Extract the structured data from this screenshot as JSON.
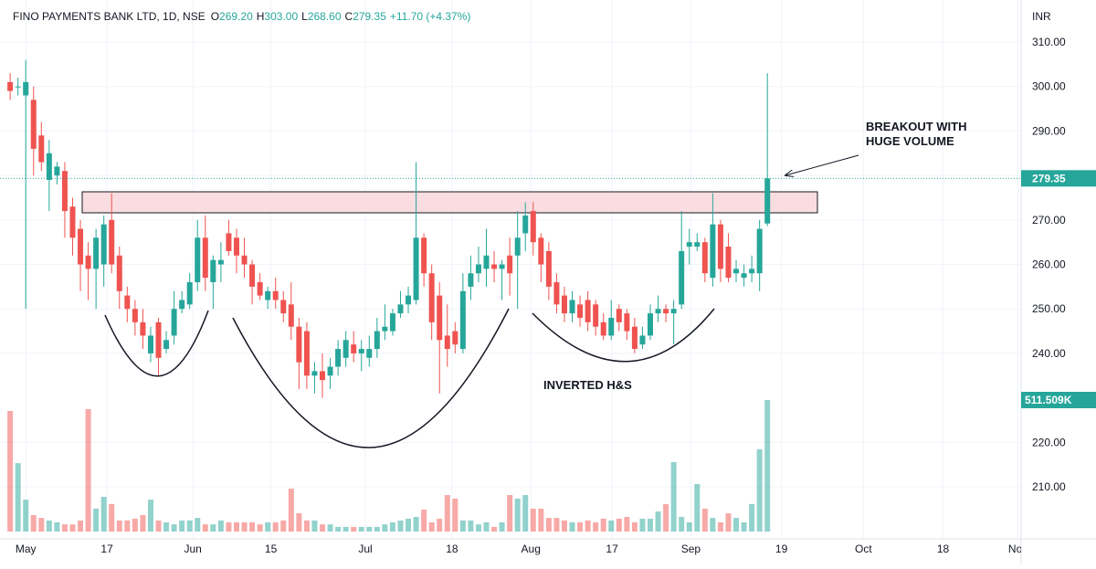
{
  "chart_data": {
    "type": "candlestick",
    "header": {
      "symbol": "FINO PAYMENTS BANK LTD, 1D, NSE",
      "o_label": "O",
      "o": "269.20",
      "h_label": "H",
      "h": "303.00",
      "l_label": "L",
      "l": "268.60",
      "c_label": "C",
      "c": "279.35",
      "change": "+11.70 (+4.37%)"
    },
    "currency": "INR",
    "open": [
      301,
      300,
      298,
      297,
      289,
      279,
      280,
      281,
      273,
      268,
      262,
      259,
      260,
      270,
      262,
      253,
      250,
      247,
      240,
      247,
      241,
      244,
      250,
      251,
      256,
      266,
      256,
      260,
      267,
      266,
      262,
      260,
      256,
      252,
      254,
      252,
      251,
      246,
      245,
      235,
      236,
      235,
      237,
      239,
      242,
      240,
      239,
      241,
      245,
      245,
      249,
      251,
      252,
      266,
      258,
      253,
      244,
      245,
      241,
      255,
      258,
      259,
      260,
      259,
      262,
      262,
      267,
      272,
      266,
      263,
      256,
      253,
      249,
      251,
      252,
      251,
      247,
      244,
      250,
      249,
      246,
      242,
      244,
      249,
      250,
      249,
      251,
      264,
      264,
      265,
      257,
      269,
      264,
      258,
      257,
      258,
      258,
      269.2
    ],
    "high": [
      303,
      302,
      306,
      300,
      292,
      288,
      283,
      283,
      275,
      270,
      265,
      268,
      271,
      276,
      264,
      255,
      252,
      250,
      246,
      248,
      245,
      254,
      254,
      258,
      270,
      271,
      262,
      265,
      270,
      268,
      266,
      261,
      258,
      255,
      257,
      254,
      256,
      248,
      247,
      238,
      240,
      239,
      243,
      245,
      245,
      243,
      244,
      248,
      251,
      250,
      254,
      255,
      283,
      267,
      260,
      256,
      251,
      247,
      258,
      262,
      264,
      268,
      263,
      261,
      266,
      272,
      274,
      274,
      267,
      265,
      258,
      255,
      254,
      253,
      254,
      252,
      249,
      252,
      251,
      250,
      248,
      246,
      251,
      253,
      251,
      252,
      272,
      268,
      267,
      266,
      276,
      270,
      267,
      261,
      260,
      262,
      270,
      303
    ],
    "low": [
      297,
      298,
      250,
      280,
      281,
      272,
      278,
      266,
      262,
      254,
      252,
      250,
      255,
      258,
      250,
      247,
      244,
      241,
      238,
      235,
      240,
      242,
      249,
      250,
      254,
      254,
      250,
      256,
      262,
      258,
      257,
      251,
      252,
      250,
      250,
      247,
      243,
      232,
      232,
      231,
      230,
      232,
      235,
      237,
      238,
      236,
      237,
      239,
      243,
      244,
      248,
      249,
      251,
      255,
      243,
      231,
      237,
      240,
      240,
      252,
      256,
      255,
      256,
      252,
      253,
      250,
      263,
      262,
      256,
      252,
      249,
      247,
      247,
      246,
      245,
      244,
      243,
      243,
      245,
      243,
      240,
      241,
      243,
      247,
      247,
      242,
      250,
      260,
      263,
      256,
      255,
      256,
      256,
      256,
      255,
      256,
      254,
      268.6
    ],
    "close": [
      299,
      300,
      301,
      286,
      283,
      285,
      282,
      272,
      266,
      260,
      259,
      266,
      269,
      260,
      254,
      250,
      247,
      244,
      244,
      239,
      243,
      250,
      252,
      256,
      266,
      257,
      261,
      261,
      263,
      262,
      260,
      255,
      253,
      254,
      252,
      249,
      246,
      238,
      235,
      236,
      234,
      237,
      241,
      243,
      240,
      241,
      241,
      245,
      246,
      249,
      251,
      253,
      266,
      258,
      247,
      243,
      241,
      242,
      254,
      258,
      260,
      262,
      259,
      260,
      258,
      266,
      271,
      265,
      260,
      255,
      251,
      249,
      252,
      248,
      247,
      246,
      244,
      248,
      247,
      245,
      241,
      244,
      249,
      250,
      249,
      250,
      263,
      265,
      265,
      258,
      269,
      259,
      257,
      259,
      258,
      259,
      268,
      279.35
    ],
    "volume": {
      "values": [
        469,
        266,
        124,
        64,
        53,
        43,
        36,
        28,
        28,
        43,
        476,
        89,
        135,
        107,
        43,
        43,
        50,
        64,
        124,
        43,
        36,
        28,
        43,
        43,
        53,
        28,
        28,
        43,
        36,
        36,
        36,
        36,
        28,
        36,
        36,
        43,
        167,
        71,
        43,
        43,
        28,
        28,
        18,
        18,
        18,
        18,
        18,
        18,
        28,
        36,
        43,
        50,
        57,
        85,
        36,
        50,
        142,
        128,
        43,
        43,
        28,
        36,
        18,
        36,
        142,
        128,
        142,
        89,
        89,
        53,
        53,
        43,
        36,
        36,
        43,
        36,
        50,
        43,
        50,
        57,
        36,
        50,
        50,
        78,
        107,
        270,
        57,
        36,
        185,
        89,
        53,
        36,
        71,
        53,
        36,
        107,
        320,
        511.509
      ],
      "last_label": "511.509K"
    },
    "up_color": "#26a69a",
    "down_color": "#ef5350",
    "ylim": [
      198.3,
      319.45
    ],
    "yticks": [
      {
        "value": 210,
        "label": "210.00"
      },
      {
        "value": 220,
        "label": "220.00"
      },
      {
        "value": 240,
        "label": "240.00"
      },
      {
        "value": 250,
        "label": "250.00"
      },
      {
        "value": 260,
        "label": "260.00"
      },
      {
        "value": 270,
        "label": "270.00"
      },
      {
        "value": 280,
        "label": "280.00"
      },
      {
        "value": 290,
        "label": "290.00"
      },
      {
        "value": 300,
        "label": "300.00"
      },
      {
        "value": 310,
        "label": "310.00"
      }
    ],
    "xlim": [
      -1.3,
      129.5
    ],
    "xticks": [
      {
        "value": 2.0,
        "label": "May"
      },
      {
        "value": 12.4,
        "label": "17"
      },
      {
        "value": 23.4,
        "label": "Jun"
      },
      {
        "value": 33.4,
        "label": "15"
      },
      {
        "value": 45.5,
        "label": "Jul"
      },
      {
        "value": 56.6,
        "label": "18"
      },
      {
        "value": 66.7,
        "label": "Aug"
      },
      {
        "value": 77.1,
        "label": "17"
      },
      {
        "value": 87.2,
        "label": "Sep"
      },
      {
        "value": 98.8,
        "label": "19"
      },
      {
        "value": 109.3,
        "label": "Oct"
      },
      {
        "value": 119.5,
        "label": "18"
      },
      {
        "value": 129.1,
        "label": "Nov"
      }
    ],
    "grid": true,
    "annotations": {
      "breakout_1": "BREAKOUT WITH",
      "breakout_2": "HUGE VOLUME",
      "pattern": "INVERTED H&S"
    }
  }
}
